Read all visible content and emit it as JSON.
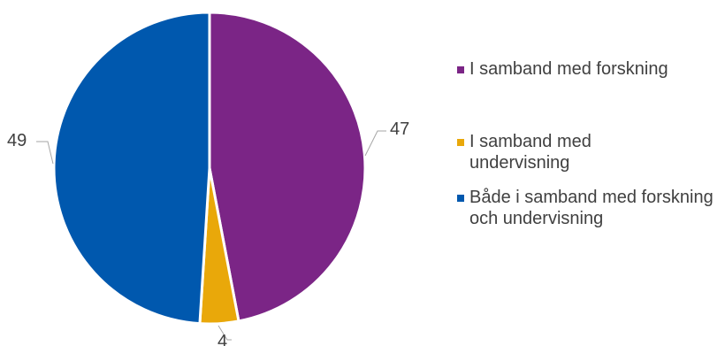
{
  "chart_data": {
    "type": "pie",
    "title": "",
    "series": [
      {
        "values": [
          47,
          4,
          49
        ],
        "labels": [
          "I samband med forskning",
          "I samband med undervisning",
          "Både i samband med forskning och undervisning"
        ],
        "colors": [
          "#7b2586",
          "#e9a80a",
          "#0058ae"
        ],
        "data_labels": [
          "47",
          "4",
          "49"
        ]
      }
    ],
    "legend": {
      "placement": "right",
      "items": [
        {
          "label": "I samband med forskning",
          "color": "#7b2586"
        },
        {
          "label": "I samband med undervisning",
          "color": "#e9a80a"
        },
        {
          "label": "Både i samband med forskning och undervisning",
          "color": "#0058ae"
        }
      ]
    }
  }
}
